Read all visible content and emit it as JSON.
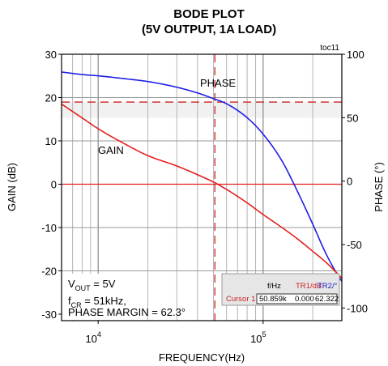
{
  "chart_data": {
    "type": "line",
    "title": "BODE PLOT",
    "subtitle": "(5V OUTPUT, 1A LOAD)",
    "figure_id": "toc11",
    "xlabel": "FREQUENCY(Hz)",
    "ylabel_left": "GAIN (dB)",
    "ylabel_right": "PHASE (°)",
    "x_scale": "log",
    "xlim": [
      6000,
      300000
    ],
    "ylim_left": [
      -31.5,
      30
    ],
    "ylim_right": [
      -110,
      100
    ],
    "x_ticks": [
      {
        "base": "10",
        "exp": "4"
      },
      {
        "base": "10",
        "exp": "5"
      }
    ],
    "y_ticks_left": [
      "30",
      "20",
      "10",
      "0",
      "-10",
      "-20",
      "-30"
    ],
    "y_ticks_right": [
      "100",
      "50",
      "0",
      "-50",
      "-100"
    ],
    "grid": true,
    "series": [
      {
        "name": "PHASE",
        "axis": "right",
        "color": "#1f1fe6",
        "x": [
          6000,
          8000,
          10000,
          15000,
          20000,
          30000,
          40000,
          50000,
          60000,
          80000,
          100000,
          130000,
          160000,
          200000,
          240000,
          280000,
          300000
        ],
        "y": [
          86,
          84,
          83,
          80.5,
          78.5,
          74,
          69.5,
          65,
          61,
          50,
          37,
          16,
          -7,
          -34,
          -57,
          -73,
          -79
        ]
      },
      {
        "name": "GAIN",
        "axis": "left",
        "color": "#e61f1f",
        "x": [
          6000,
          8000,
          10000,
          15000,
          20000,
          30000,
          40000,
          50000,
          60000,
          80000,
          100000,
          130000,
          160000,
          200000,
          240000,
          280000,
          300000
        ],
        "y": [
          18.5,
          15.3,
          12.8,
          9,
          6.6,
          4.2,
          2.2,
          0.5,
          -1.2,
          -4.3,
          -7,
          -10,
          -12.5,
          -15.5,
          -18,
          -20.5,
          -21.7
        ]
      }
    ],
    "reference_lines": {
      "gain_zero_db": 0,
      "phase_at_crossover_deg": 62.3,
      "crossover_hz": 51000
    },
    "annotations": {
      "phase_label": "PHASE",
      "gain_label": "GAIN",
      "vout_prefix": "V",
      "vout_sub": "OUT",
      "vout_value": " = 5V",
      "fcr_prefix": "f",
      "fcr_sub": "CR",
      "fcr_value": " = 51kHz,",
      "phase_margin": "PHASE MARGIN = 62.3°"
    },
    "cursor_readout": {
      "headers": [
        "f/Hz",
        "TR1/dB",
        "TR2/°"
      ],
      "label": "Cursor 1",
      "values": [
        "50.859k",
        "0.000",
        "62.322"
      ]
    },
    "colors": {
      "gain": "#e61f1f",
      "phase": "#1f1fe6",
      "grid": "#b4b4b4",
      "cursor": "#cc2222"
    }
  }
}
